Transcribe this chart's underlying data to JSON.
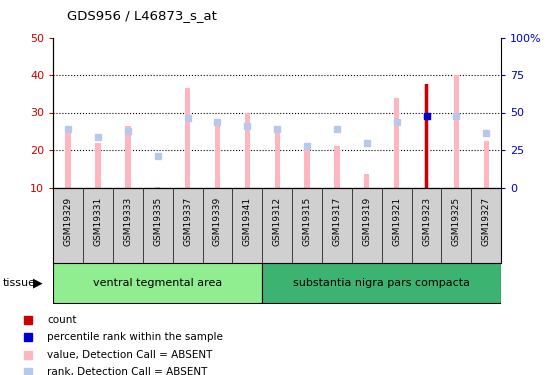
{
  "title": "GDS956 / L46873_s_at",
  "samples": [
    "GSM19329",
    "GSM19331",
    "GSM19333",
    "GSM19335",
    "GSM19337",
    "GSM19339",
    "GSM19341",
    "GSM19312",
    "GSM19315",
    "GSM19317",
    "GSM19319",
    "GSM19321",
    "GSM19323",
    "GSM19325",
    "GSM19327"
  ],
  "values_absent": [
    25.5,
    22.0,
    26.5,
    10.2,
    36.5,
    28.0,
    30.0,
    25.5,
    21.0,
    21.0,
    13.5,
    34.0,
    37.5,
    40.0,
    22.5
  ],
  "rank_absent": [
    25.5,
    23.5,
    25.0,
    18.5,
    28.5,
    27.5,
    26.5,
    25.5,
    21.0,
    25.5,
    22.0,
    27.5,
    29.0,
    29.0,
    24.5
  ],
  "count_value": [
    null,
    null,
    null,
    null,
    null,
    null,
    null,
    null,
    null,
    null,
    null,
    null,
    37.5,
    null,
    null
  ],
  "count_rank": [
    null,
    null,
    null,
    null,
    null,
    null,
    null,
    null,
    null,
    null,
    null,
    null,
    29.0,
    null,
    null
  ],
  "groups": [
    {
      "label": "ventral tegmental area",
      "start": 0,
      "end": 7,
      "color": "#90ee90"
    },
    {
      "label": "substantia nigra pars compacta",
      "start": 7,
      "end": 15,
      "color": "#3cb371"
    }
  ],
  "ylim_left": [
    10,
    50
  ],
  "ylim_right": [
    0,
    100
  ],
  "yticks_left": [
    10,
    20,
    30,
    40,
    50
  ],
  "yticks_right": [
    0,
    25,
    50,
    75,
    100
  ],
  "ytick_labels_right": [
    "0",
    "25",
    "50",
    "75",
    "100%"
  ],
  "bar_width": 0.18,
  "value_color_absent": "#ffb6c1",
  "rank_color_absent": "#b8c8e8",
  "count_color": "#cc0000",
  "count_rank_color": "#0000cc",
  "grid_color": "black",
  "bg_color": "white",
  "plot_bg": "white",
  "xtick_bg": "#d0d0d0",
  "legend_items": [
    {
      "label": "count",
      "color": "#cc0000"
    },
    {
      "label": "percentile rank within the sample",
      "color": "#0000cc"
    },
    {
      "label": "value, Detection Call = ABSENT",
      "color": "#ffb6c1"
    },
    {
      "label": "rank, Detection Call = ABSENT",
      "color": "#b8c8e8"
    }
  ],
  "tissue_label": "tissue",
  "left_axis_color": "#cc0000",
  "right_axis_color": "#0000cc"
}
